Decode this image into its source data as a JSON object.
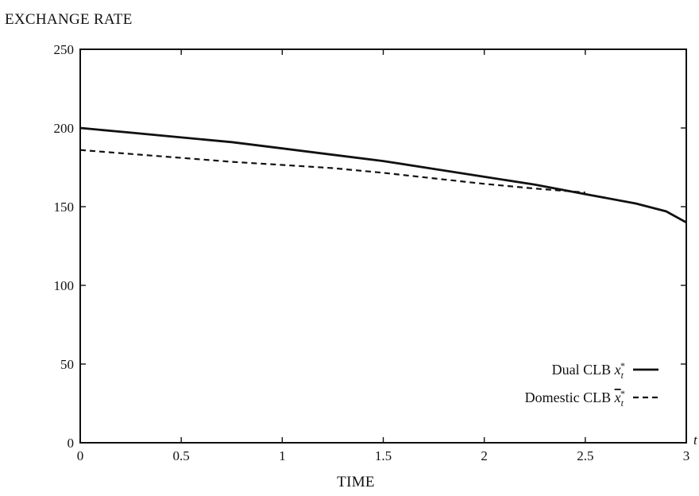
{
  "chart_data": {
    "type": "line",
    "title": "",
    "ylabel": "EXCHANGE RATE",
    "xlabel": "TIME",
    "x_axis_end_label": "t",
    "xlim": [
      0,
      3
    ],
    "ylim": [
      0,
      250
    ],
    "xticks": [
      0,
      0.5,
      1,
      1.5,
      2,
      2.5,
      3
    ],
    "xtick_labels": [
      "0",
      "0.5",
      "1",
      "1.5",
      "2",
      "2.5",
      "3"
    ],
    "yticks": [
      0,
      50,
      100,
      150,
      200,
      250
    ],
    "ytick_labels": [
      "0",
      "50",
      "100",
      "150",
      "200",
      "250"
    ],
    "grid": false,
    "legend_position": "bottom-right",
    "series": [
      {
        "name": "Dual CLB",
        "symbol_base": "x",
        "symbol_sub": "t",
        "symbol_sup": "*",
        "symbol_overline": false,
        "style": "solid",
        "color": "#111111",
        "x": [
          0,
          0.25,
          0.5,
          0.75,
          1,
          1.25,
          1.5,
          1.75,
          2,
          2.25,
          2.5,
          2.75,
          2.9,
          3
        ],
        "values": [
          200,
          197,
          194,
          191,
          187,
          183,
          179,
          174,
          169,
          164,
          158,
          152,
          147,
          140
        ]
      },
      {
        "name": "Domestic CLB",
        "symbol_base": "x",
        "symbol_sub": "t",
        "symbol_sup": "*",
        "symbol_overline": true,
        "style": "dashed",
        "color": "#111111",
        "x": [
          0,
          0.25,
          0.5,
          0.75,
          1,
          1.25,
          1.5,
          1.75,
          2,
          2.25,
          2.5
        ],
        "values": [
          186,
          183.5,
          181,
          178.5,
          176.5,
          174.5,
          171.5,
          168,
          164.5,
          161.5,
          159
        ]
      }
    ]
  }
}
